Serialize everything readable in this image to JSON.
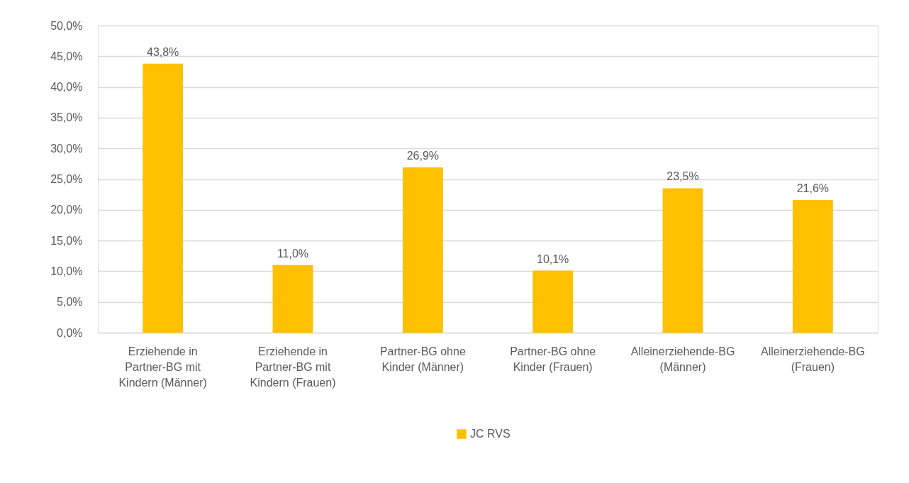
{
  "chart_data": {
    "type": "bar",
    "categories": [
      "Erziehende in Partner-BG mit Kindern (Männer)",
      "Erziehende in Partner-BG mit Kindern (Frauen)",
      "Partner-BG ohne Kinder (Männer)",
      "Partner-BG ohne Kinder (Frauen)",
      "Alleinerziehende-BG (Männer)",
      "Alleinerziehende-BG (Frauen)"
    ],
    "series": [
      {
        "name": "JC RVS",
        "color": "#ffc000",
        "values": [
          43.8,
          11.0,
          26.9,
          10.1,
          23.5,
          21.6
        ],
        "value_labels": [
          "43,8%",
          "11,0%",
          "26,9%",
          "10,1%",
          "23,5%",
          "21,6%"
        ]
      }
    ],
    "ylim": [
      0,
      50
    ],
    "yticks": [
      {
        "value": 0,
        "label": "0,0%"
      },
      {
        "value": 5,
        "label": "5,0%"
      },
      {
        "value": 10,
        "label": "10,0%"
      },
      {
        "value": 15,
        "label": "15,0%"
      },
      {
        "value": 20,
        "label": "20,0%"
      },
      {
        "value": 25,
        "label": "25,0%"
      },
      {
        "value": 30,
        "label": "30,0%"
      },
      {
        "value": 35,
        "label": "35,0%"
      },
      {
        "value": 40,
        "label": "40,0%"
      },
      {
        "value": 45,
        "label": "45,0%"
      },
      {
        "value": 50,
        "label": "50,0%"
      }
    ],
    "grid": "y",
    "legend": "bottom"
  }
}
